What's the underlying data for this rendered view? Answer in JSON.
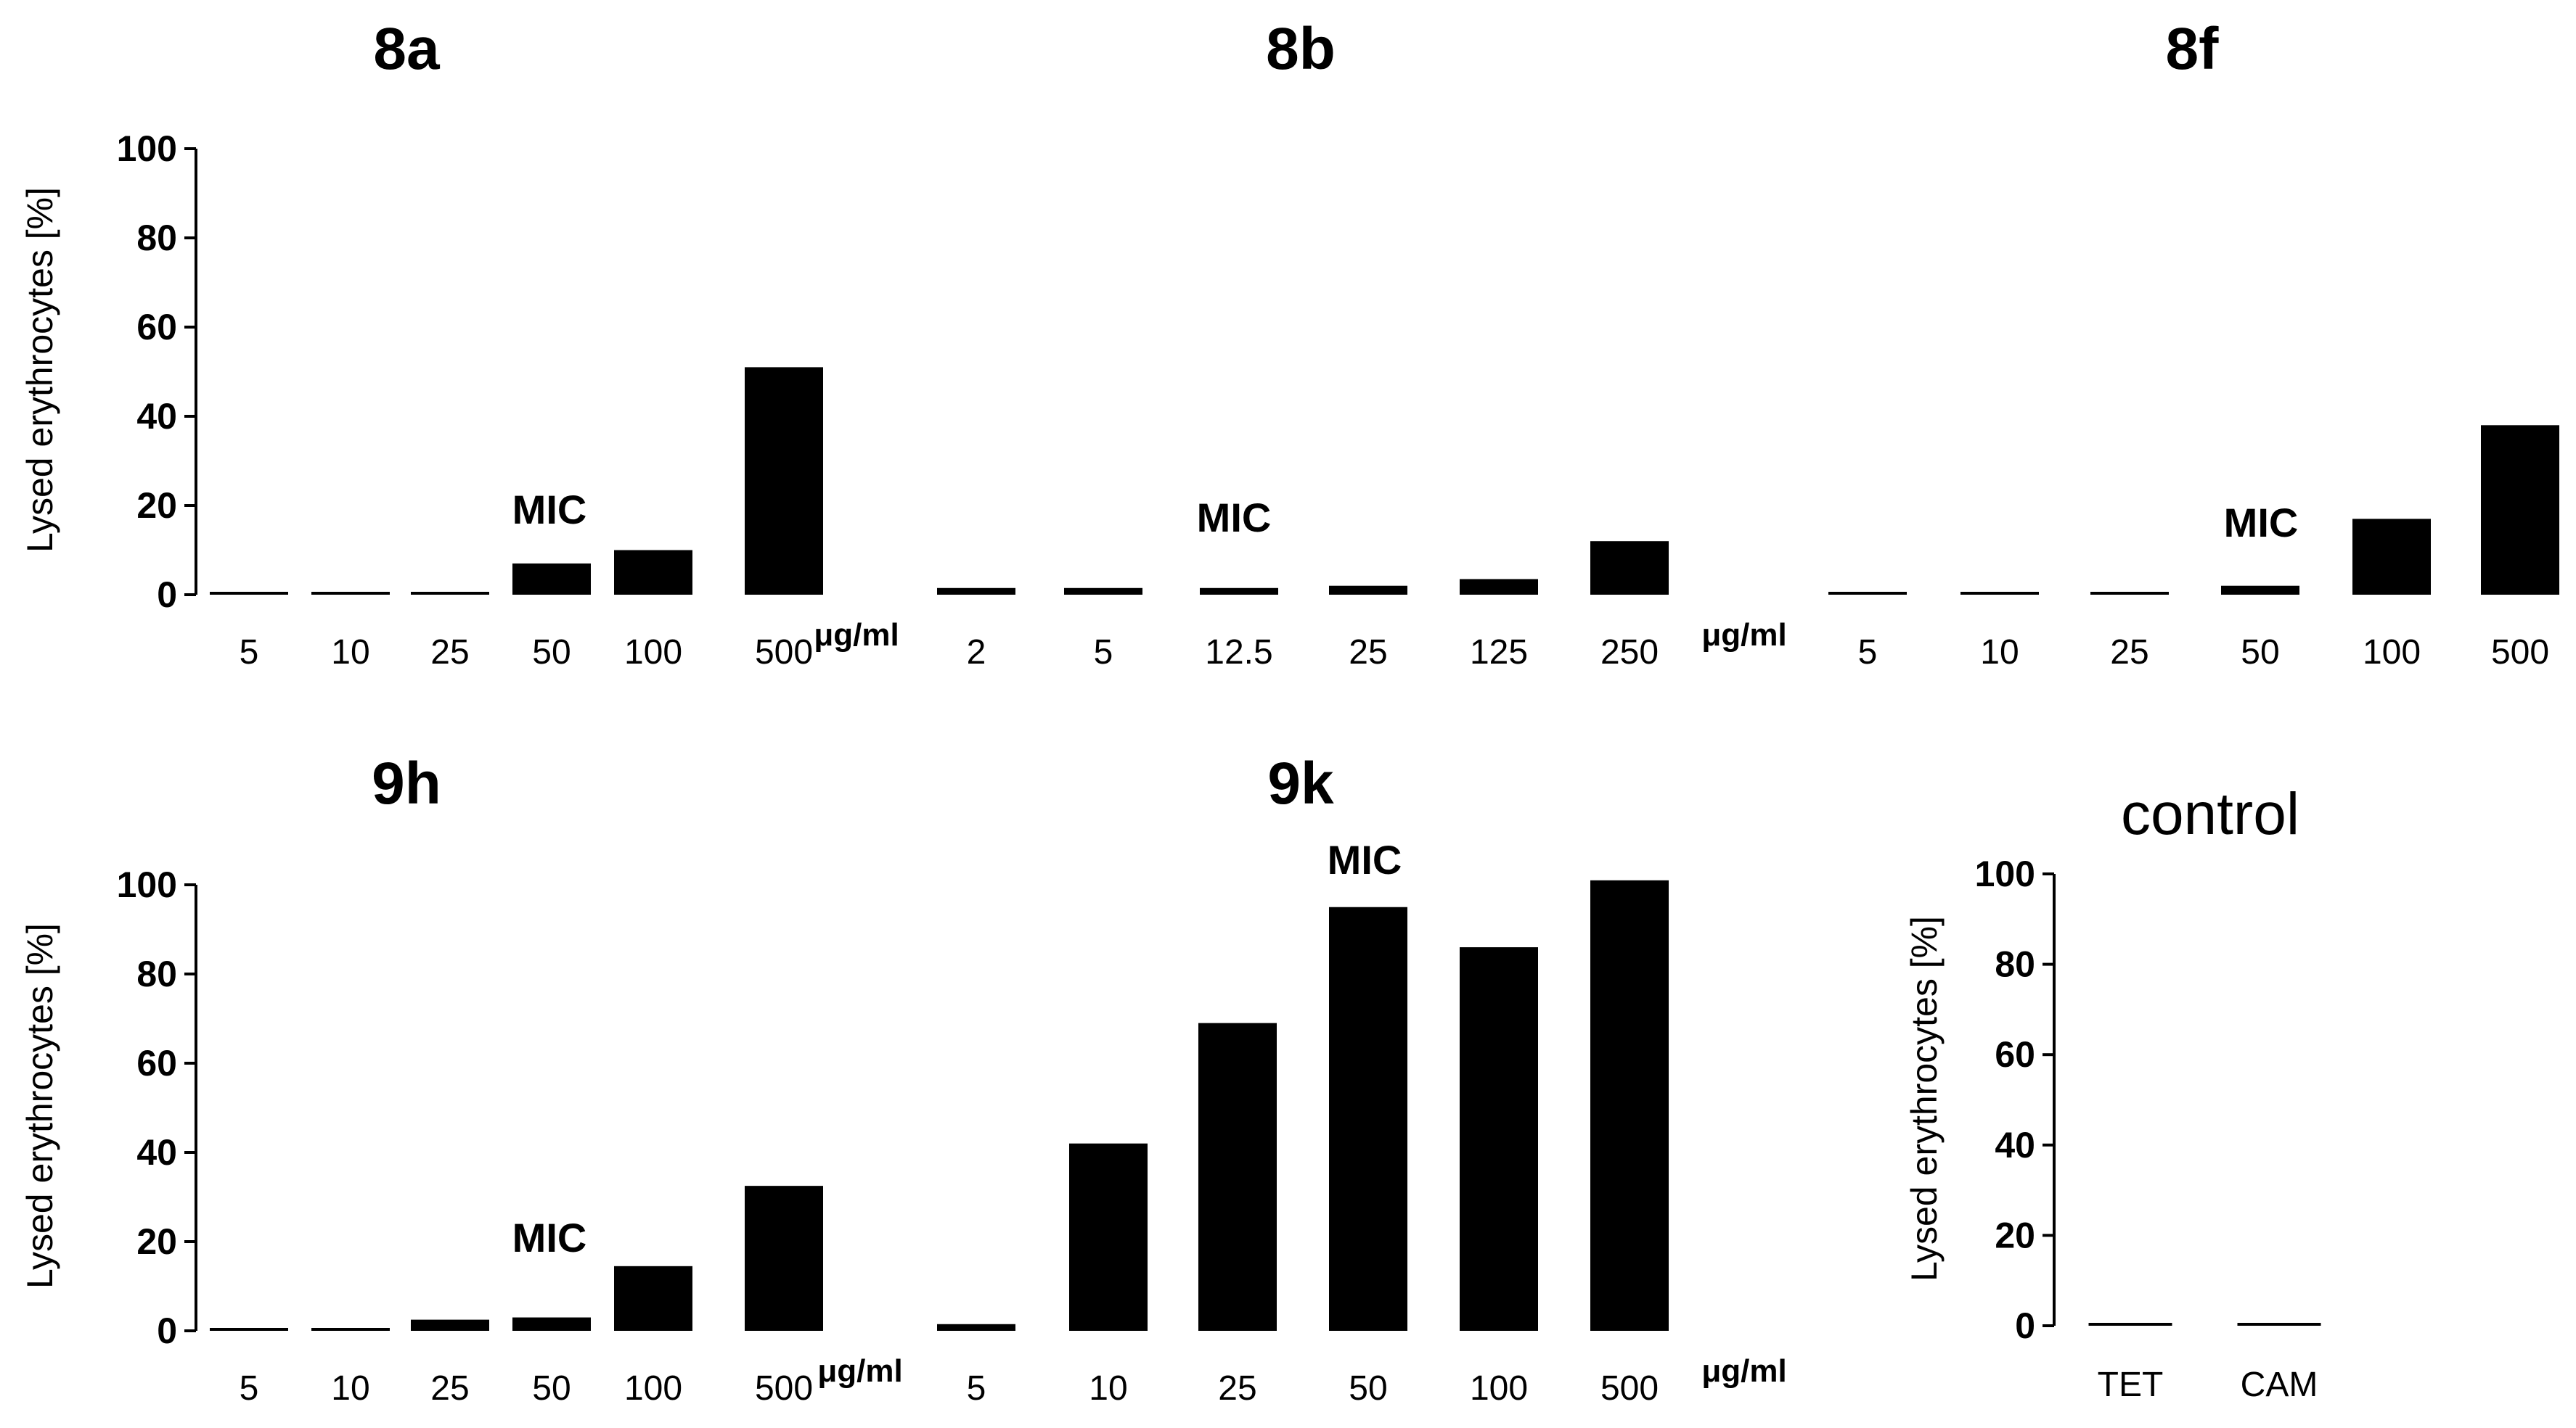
{
  "figure": {
    "unit_label": "μg/ml",
    "mic_label": "MIC"
  },
  "chart_data": [
    {
      "id": "8a",
      "type": "bar",
      "title": "8a",
      "ylabel": "Lysed erythrocytes [%]",
      "ylim": [
        0,
        100
      ],
      "yticks": [
        0,
        20,
        40,
        60,
        80,
        100
      ],
      "categories": [
        "5",
        "10",
        "25",
        "50",
        "100",
        "500"
      ],
      "values": [
        0.5,
        0.5,
        0.5,
        7,
        10,
        51
      ],
      "unit": "μg/ml",
      "mic_category": "50"
    },
    {
      "id": "8b",
      "type": "bar",
      "title": "8b",
      "ylim": [
        0,
        100
      ],
      "categories": [
        "2",
        "5",
        "12.5",
        "25",
        "125",
        "250"
      ],
      "values": [
        1.5,
        1.5,
        1.5,
        2,
        3.5,
        12
      ],
      "unit": "μg/ml",
      "mic_category": "12.5"
    },
    {
      "id": "8f",
      "type": "bar",
      "title": "8f",
      "ylim": [
        0,
        100
      ],
      "categories": [
        "5",
        "10",
        "25",
        "50",
        "100",
        "500"
      ],
      "values": [
        0.5,
        0.5,
        0.5,
        2,
        17,
        38
      ],
      "mic_category": "50"
    },
    {
      "id": "9h",
      "type": "bar",
      "title": "9h",
      "ylabel": "Lysed erythrocytes [%]",
      "ylim": [
        0,
        100
      ],
      "yticks": [
        0,
        20,
        40,
        60,
        80,
        100
      ],
      "categories": [
        "5",
        "10",
        "25",
        "50",
        "100",
        "500"
      ],
      "values": [
        0.5,
        0.5,
        2.5,
        3,
        14.5,
        32.5
      ],
      "unit": "μg/ml",
      "mic_category": "50"
    },
    {
      "id": "9k",
      "type": "bar",
      "title": "9k",
      "ylim": [
        0,
        100
      ],
      "categories": [
        "5",
        "10",
        "25",
        "50",
        "100",
        "500"
      ],
      "values": [
        1.5,
        42,
        69,
        95,
        86,
        101
      ],
      "unit": "μg/ml",
      "mic_category": "50"
    },
    {
      "id": "control",
      "type": "bar",
      "title": "control",
      "ylabel": "Lysed erythrocytes [%]",
      "ylim": [
        0,
        100
      ],
      "yticks": [
        0,
        20,
        40,
        60,
        80,
        100
      ],
      "categories": [
        "TET",
        "CAM"
      ],
      "values": [
        0.5,
        0.5
      ]
    }
  ]
}
